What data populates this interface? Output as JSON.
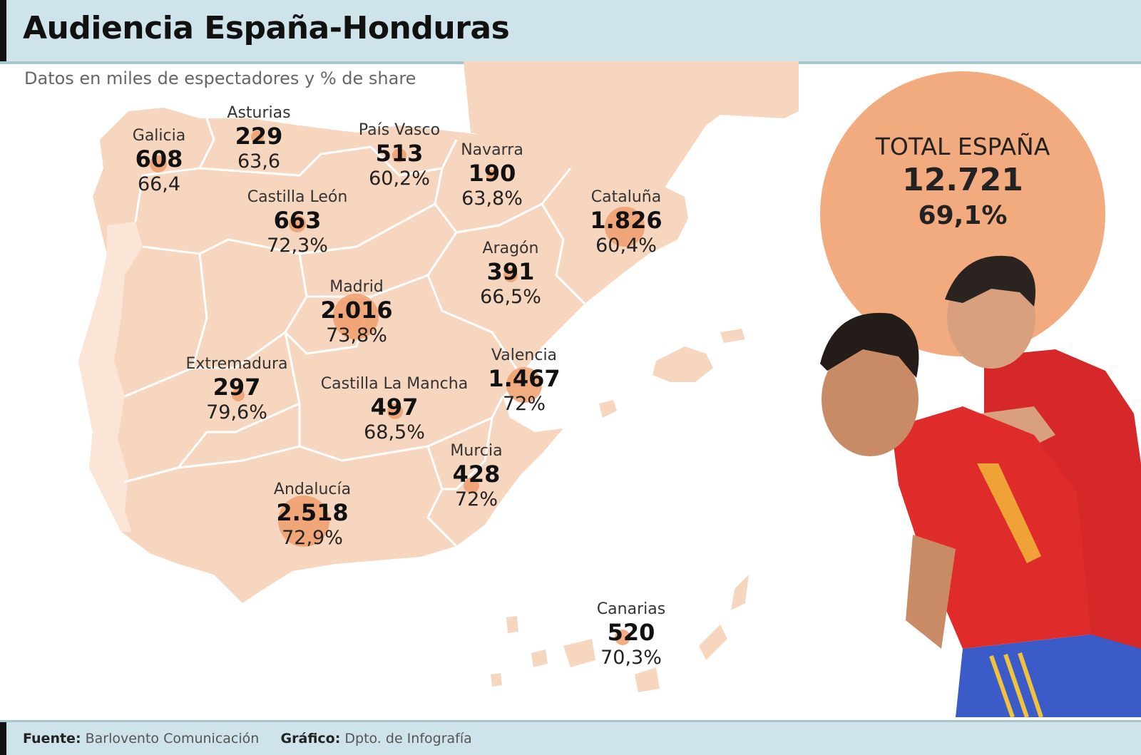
{
  "header": {
    "title": "Audiencia España-Honduras"
  },
  "subtitle": "Datos en miles de espectadores y % de share",
  "total": {
    "label": "TOTAL ESPAÑA",
    "value": "12.721",
    "share": "69,1%"
  },
  "regions": [
    {
      "name": "Galicia",
      "value": "608",
      "share": "66,4"
    },
    {
      "name": "Asturias",
      "value": "229",
      "share": "63,6"
    },
    {
      "name": "País Vasco",
      "value": "513",
      "share": "60,2%"
    },
    {
      "name": "Navarra",
      "value": "190",
      "share": "63,8%"
    },
    {
      "name": "Castilla León",
      "value": "663",
      "share": "72,3%"
    },
    {
      "name": "Cataluña",
      "value": "1.826",
      "share": "60,4%"
    },
    {
      "name": "Aragón",
      "value": "391",
      "share": "66,5%"
    },
    {
      "name": "Madrid",
      "value": "2.016",
      "share": "73,8%"
    },
    {
      "name": "Extremadura",
      "value": "297",
      "share": "79,6%"
    },
    {
      "name": "Castilla La Mancha",
      "value": "497",
      "share": "68,5%"
    },
    {
      "name": "Valencia",
      "value": "1.467",
      "share": "72%"
    },
    {
      "name": "Murcia",
      "value": "428",
      "share": "72%"
    },
    {
      "name": "Andalucía",
      "value": "2.518",
      "share": "72,9%"
    },
    {
      "name": "Canarias",
      "value": "520",
      "share": "70,3%"
    }
  ],
  "footer": {
    "source_label": "Fuente:",
    "source": "Barlovento Comunicación",
    "graphic_label": "Gráfico:",
    "graphic": "Dpto. de Infografía"
  },
  "colors": {
    "land": "#f7d6bf",
    "dot": "#f09d6c",
    "total_circle": "#f2aa7f",
    "header": "#cfe3ea"
  }
}
